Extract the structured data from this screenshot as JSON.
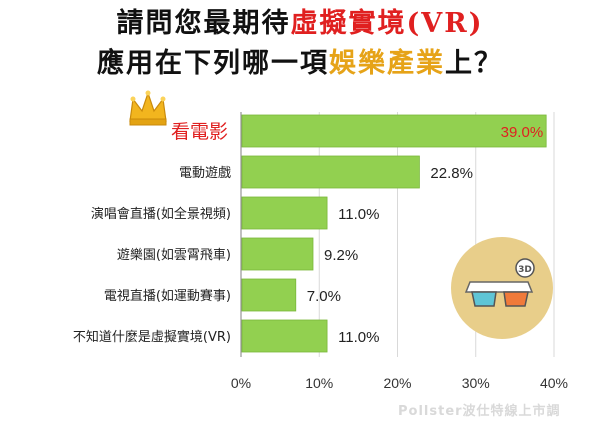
{
  "title": {
    "line1_pre": "請問您最期待",
    "line1_hl": "虛擬實境(VR)",
    "line2_pre": "應用在下列哪一項",
    "line2_hl": "娛樂產業",
    "line2_post": "上？"
  },
  "icon": "3d-glasses-icon",
  "crown_icon": "crown-icon",
  "brand": "Pollster波仕特線上市調",
  "colors": {
    "bar": "#92d050",
    "bar_edge": "#7ab83a",
    "highlight": "#e02020",
    "title_gold": "#e6a318",
    "icon_circle": "#e8ce8a"
  },
  "chart_data": {
    "type": "bar",
    "orientation": "horizontal",
    "categories": [
      "看電影",
      "電動遊戲",
      "演唱會直播(如全景視頻)",
      "遊樂園(如雲霄飛車)",
      "電視直播(如運動賽事)",
      "不知道什麼是虛擬實境(VR)"
    ],
    "values": [
      39.0,
      22.8,
      11.0,
      9.2,
      7.0,
      11.0
    ],
    "value_labels": [
      "39.0%",
      "22.8%",
      "11.0%",
      "9.2%",
      "7.0%",
      "11.0%"
    ],
    "xlim": [
      0,
      40
    ],
    "x_ticks": [
      "0%",
      "10%",
      "20%",
      "30%",
      "40%"
    ],
    "grid": true,
    "highlight_index": 0
  }
}
